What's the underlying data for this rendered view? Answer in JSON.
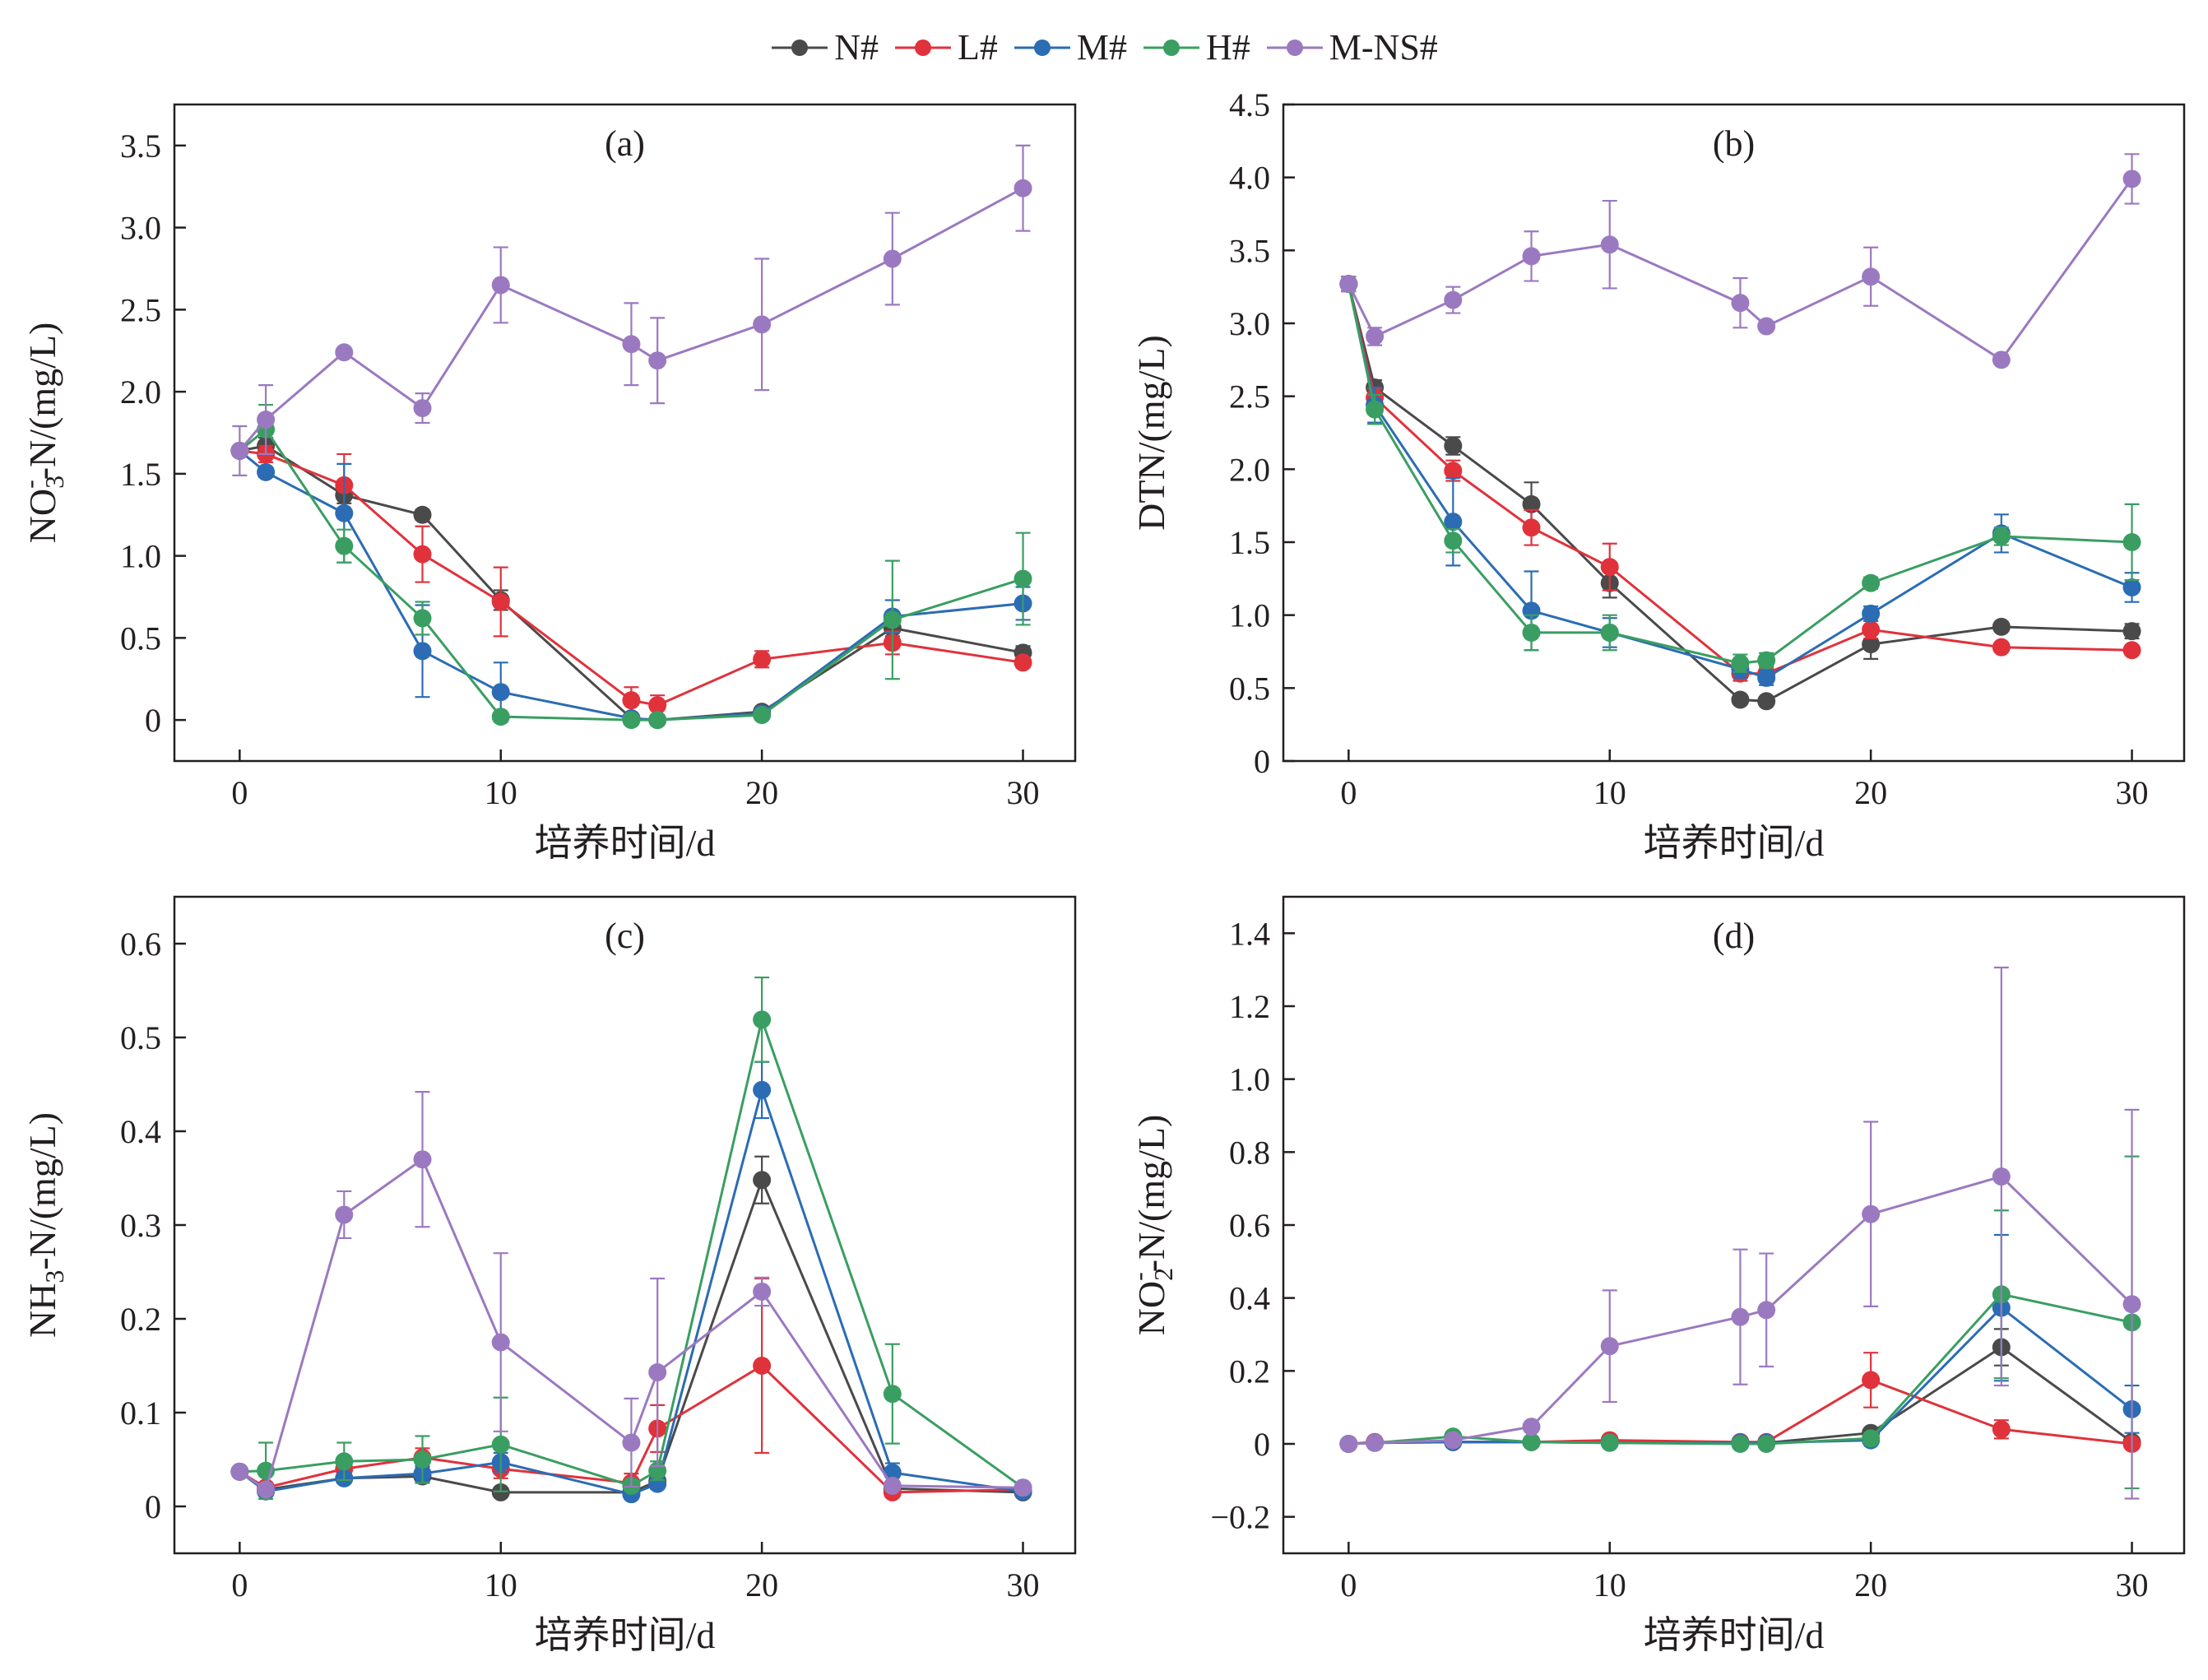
{
  "series_styles": [
    {
      "name": "N#",
      "color": "#4a4a4a"
    },
    {
      "name": "L#",
      "color": "#e0323b"
    },
    {
      "name": "M#",
      "color": "#2b6cb4"
    },
    {
      "name": "H#",
      "color": "#3a9e62"
    },
    {
      "name": "M-NS#",
      "color": "#9b79c0"
    }
  ],
  "chart_data": [
    {
      "type": "line",
      "panel": "(a)",
      "xlabel": "培养时间/d",
      "ylabel": "NO₃⁻-N/(mg/L)",
      "ylabel_parts": [
        "NO",
        "3",
        "-",
        "-N/(mg/L)"
      ],
      "xlim": [
        -2.5,
        32
      ],
      "ylim": [
        -0.25,
        3.75
      ],
      "xticks": [
        0,
        10,
        20,
        30
      ],
      "yticks": [
        0,
        0.5,
        1.0,
        1.5,
        2.0,
        2.5,
        3.0,
        3.5
      ],
      "ytick_labels": [
        "0",
        "0.5",
        "1.0",
        "1.5",
        "2.0",
        "2.5",
        "3.0",
        "3.5"
      ],
      "x": [
        0,
        1,
        4,
        7,
        10,
        15,
        16,
        20,
        25,
        30
      ],
      "series": [
        {
          "name": "N#",
          "values": [
            1.64,
            1.67,
            1.37,
            1.25,
            0.73,
            0.01,
            0.0,
            0.05,
            0.56,
            0.41
          ],
          "errors": [
            0,
            0.05,
            0.05,
            0.03,
            0.06,
            0.01,
            0.01,
            0.02,
            0.05,
            0.04
          ]
        },
        {
          "name": "L#",
          "values": [
            1.64,
            1.62,
            1.43,
            1.01,
            0.72,
            0.12,
            0.09,
            0.37,
            0.47,
            0.35
          ],
          "errors": [
            0,
            0.05,
            0.19,
            0.17,
            0.21,
            0.08,
            0.06,
            0.05,
            0.07,
            0.03
          ]
        },
        {
          "name": "M#",
          "values": [
            1.64,
            1.51,
            1.26,
            0.42,
            0.17,
            0.01,
            0.0,
            0.04,
            0.63,
            0.71
          ],
          "errors": [
            0,
            0.03,
            0.3,
            0.28,
            0.18,
            0.01,
            0.01,
            0.02,
            0.1,
            0.1
          ]
        },
        {
          "name": "H#",
          "values": [
            1.64,
            1.77,
            1.06,
            0.62,
            0.02,
            0.0,
            0.0,
            0.03,
            0.61,
            0.86
          ],
          "errors": [
            0,
            0.15,
            0.1,
            0.1,
            0.02,
            0.01,
            0.01,
            0.02,
            0.36,
            0.28
          ]
        },
        {
          "name": "M-NS#",
          "values": [
            1.64,
            1.83,
            2.24,
            1.9,
            2.65,
            2.29,
            2.19,
            2.41,
            2.81,
            3.24
          ],
          "errors": [
            0.15,
            0.21,
            0.02,
            0.09,
            0.23,
            0.25,
            0.26,
            0.4,
            0.28,
            0.26
          ]
        }
      ]
    },
    {
      "type": "line",
      "panel": "(b)",
      "xlabel": "培养时间/d",
      "ylabel": "DTN/(mg/L)",
      "ylabel_parts": [
        "DTN/(mg/L)",
        "",
        "",
        ""
      ],
      "xlim": [
        -2.5,
        32
      ],
      "ylim": [
        0,
        4.5
      ],
      "xticks": [
        0,
        10,
        20,
        30
      ],
      "yticks": [
        0,
        0.5,
        1.0,
        1.5,
        2.0,
        2.5,
        3.0,
        3.5,
        4.0,
        4.5
      ],
      "ytick_labels": [
        "0",
        "0.5",
        "1.0",
        "1.5",
        "2.0",
        "2.5",
        "3.0",
        "3.5",
        "4.0",
        "4.5"
      ],
      "x": [
        0,
        1,
        4,
        7,
        10,
        15,
        16,
        20,
        25,
        30
      ],
      "series": [
        {
          "name": "N#",
          "values": [
            3.27,
            2.56,
            2.16,
            1.76,
            1.22,
            0.42,
            0.41,
            0.8,
            0.92,
            0.89
          ],
          "errors": [
            0.05,
            0.05,
            0.06,
            0.15,
            0.1,
            0.02,
            0.02,
            0.1,
            0.03,
            0.05
          ]
        },
        {
          "name": "L#",
          "values": [
            3.27,
            2.49,
            1.99,
            1.6,
            1.33,
            0.6,
            0.6,
            0.9,
            0.78,
            0.76
          ],
          "errors": [
            0.05,
            0.06,
            0.07,
            0.12,
            0.16,
            0.05,
            0.05,
            0.06,
            0.03,
            0.03
          ]
        },
        {
          "name": "M#",
          "values": [
            3.27,
            2.44,
            1.64,
            1.03,
            0.88,
            0.63,
            0.57,
            1.01,
            1.56,
            1.19
          ],
          "errors": [
            0.05,
            0.12,
            0.3,
            0.27,
            0.1,
            0.06,
            0.05,
            0.05,
            0.13,
            0.1
          ]
        },
        {
          "name": "H#",
          "values": [
            3.27,
            2.41,
            1.51,
            0.88,
            0.88,
            0.67,
            0.69,
            1.22,
            1.54,
            1.5
          ],
          "errors": [
            0.05,
            0.1,
            0.08,
            0.12,
            0.12,
            0.06,
            0.05,
            0.04,
            0.06,
            0.26
          ]
        },
        {
          "name": "M-NS#",
          "values": [
            3.27,
            2.91,
            3.16,
            3.46,
            3.54,
            3.14,
            2.98,
            3.32,
            2.75,
            3.99
          ],
          "errors": [
            0.05,
            0.06,
            0.09,
            0.17,
            0.3,
            0.17,
            0.03,
            0.2,
            0.03,
            0.17
          ]
        }
      ]
    },
    {
      "type": "line",
      "panel": "(c)",
      "xlabel": "培养时间/d",
      "ylabel": "NH₃-N/(mg/L)",
      "ylabel_parts": [
        "NH",
        "3",
        "",
        "-N/(mg/L)"
      ],
      "xlim": [
        -2.5,
        32
      ],
      "ylim": [
        -0.05,
        0.65
      ],
      "xticks": [
        0,
        10,
        20,
        30
      ],
      "yticks": [
        0,
        0.1,
        0.2,
        0.3,
        0.4,
        0.5,
        0.6
      ],
      "ytick_labels": [
        "0",
        "0.1",
        "0.2",
        "0.3",
        "0.4",
        "0.5",
        "0.6"
      ],
      "x": [
        0,
        1,
        4,
        7,
        10,
        15,
        16,
        20,
        25,
        30
      ],
      "series": [
        {
          "name": "N#",
          "values": [
            0.037,
            0.018,
            0.03,
            0.032,
            0.015,
            0.015,
            0.027,
            0.348,
            0.019,
            0.015
          ],
          "errors": [
            0,
            0.005,
            0.005,
            0.005,
            0.003,
            0.003,
            0.005,
            0.025,
            0.003,
            0.003
          ]
        },
        {
          "name": "L#",
          "values": [
            0.037,
            0.02,
            0.04,
            0.052,
            0.04,
            0.025,
            0.083,
            0.15,
            0.015,
            0.018
          ],
          "errors": [
            0,
            0.005,
            0.008,
            0.01,
            0.01,
            0.01,
            0.025,
            0.093,
            0.005,
            0.005
          ]
        },
        {
          "name": "M#",
          "values": [
            0.037,
            0.016,
            0.03,
            0.035,
            0.047,
            0.013,
            0.024,
            0.444,
            0.036,
            0.016
          ],
          "errors": [
            0,
            0.005,
            0.005,
            0.008,
            0.01,
            0.005,
            0.005,
            0.03,
            0.01,
            0.003
          ]
        },
        {
          "name": "H#",
          "values": [
            0.037,
            0.038,
            0.048,
            0.05,
            0.066,
            0.022,
            0.038,
            0.519,
            0.12,
            0.02
          ],
          "errors": [
            0,
            0.03,
            0.02,
            0.025,
            0.05,
            0.005,
            0.01,
            0.045,
            0.053,
            0.003
          ]
        },
        {
          "name": "M-NS#",
          "values": [
            0.037,
            0.018,
            0.311,
            0.37,
            0.175,
            0.068,
            0.143,
            0.229,
            0.022,
            0.02
          ],
          "errors": [
            0,
            0.005,
            0.025,
            0.072,
            0.095,
            0.047,
            0.1,
            0.015,
            0.003,
            0.003
          ]
        }
      ]
    },
    {
      "type": "line",
      "panel": "(d)",
      "xlabel": "培养时间/d",
      "ylabel": "NO₂⁻-N/(mg/L)",
      "ylabel_parts": [
        "NO",
        "2",
        "-",
        "-N/(mg/L)"
      ],
      "xlim": [
        -2.5,
        32
      ],
      "ylim": [
        -0.3,
        1.5
      ],
      "xticks": [
        0,
        10,
        20,
        30
      ],
      "yticks": [
        -0.2,
        0,
        0.2,
        0.4,
        0.6,
        0.8,
        1.0,
        1.2,
        1.4
      ],
      "ytick_labels": [
        "−0.2",
        "0",
        "0.2",
        "0.4",
        "0.6",
        "0.8",
        "1.0",
        "1.2",
        "1.4"
      ],
      "x": [
        0,
        1,
        4,
        7,
        10,
        15,
        16,
        20,
        25,
        30
      ],
      "series": [
        {
          "name": "N#",
          "values": [
            0.0,
            0.003,
            0.005,
            0.005,
            0.005,
            0.003,
            0.003,
            0.03,
            0.265,
            0.005
          ],
          "errors": [
            0,
            0.003,
            0.003,
            0.003,
            0.003,
            0.003,
            0.003,
            0.01,
            0.05,
            0.005
          ]
        },
        {
          "name": "L#",
          "values": [
            0.0,
            0.005,
            0.005,
            0.005,
            0.01,
            0.005,
            0.005,
            0.175,
            0.04,
            0.0
          ],
          "errors": [
            0,
            0.003,
            0.003,
            0.003,
            0.005,
            0.003,
            0.003,
            0.075,
            0.025,
            0.005
          ]
        },
        {
          "name": "M#",
          "values": [
            0.0,
            0.003,
            0.005,
            0.005,
            0.003,
            0.003,
            0.003,
            0.01,
            0.373,
            0.095
          ],
          "errors": [
            0,
            0.003,
            0.003,
            0.003,
            0.003,
            0.003,
            0.003,
            0.005,
            0.2,
            0.065
          ]
        },
        {
          "name": "H#",
          "values": [
            0.0,
            0.003,
            0.02,
            0.005,
            0.003,
            0.0,
            0.0,
            0.015,
            0.41,
            0.333
          ],
          "errors": [
            0,
            0.003,
            0.005,
            0.003,
            0.003,
            0.003,
            0.003,
            0.005,
            0.23,
            0.455
          ]
        },
        {
          "name": "M-NS#",
          "values": [
            0.0,
            0.003,
            0.01,
            0.047,
            0.268,
            0.348,
            0.367,
            0.63,
            0.733,
            0.383
          ],
          "errors": [
            0,
            0.003,
            0.003,
            0.01,
            0.153,
            0.185,
            0.155,
            0.253,
            0.573,
            0.533
          ]
        }
      ]
    }
  ]
}
